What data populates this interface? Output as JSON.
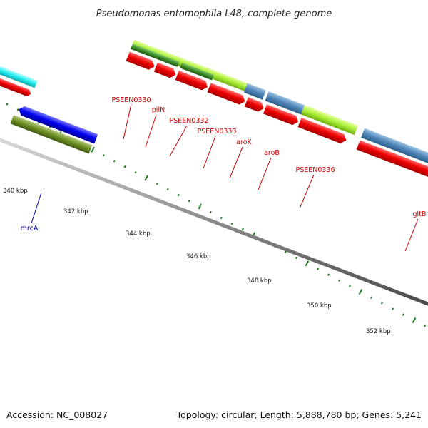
{
  "title": "Pseudomonas entomophila L48, complete genome",
  "footer": {
    "accession": "Accession: NC_008027",
    "summary": "Topology: circular; Length: 5,888,780 bp; Genes: 5,241"
  },
  "scale_unit": "kbp",
  "ticks": [
    {
      "label": "340 kbp"
    },
    {
      "label": "342 kbp"
    },
    {
      "label": "344 kbp"
    },
    {
      "label": "346 kbp"
    },
    {
      "label": "348 kbp"
    },
    {
      "label": "350 kbp"
    },
    {
      "label": "352 kbp"
    }
  ],
  "gene_labels": [
    {
      "name": "PSEEN0330",
      "color": "#cc0000"
    },
    {
      "name": "pilN",
      "color": "#cc0000"
    },
    {
      "name": "PSEEN0332",
      "color": "#cc0000"
    },
    {
      "name": "PSEEN0333",
      "color": "#cc0000"
    },
    {
      "name": "aroK",
      "color": "#cc0000"
    },
    {
      "name": "aroB",
      "color": "#cc0000"
    },
    {
      "name": "PSEEN0336",
      "color": "#cc0000"
    },
    {
      "name": "gltB",
      "color": "#cc0000"
    },
    {
      "name": "mrcA",
      "color": "#0000aa"
    }
  ],
  "colors": {
    "backbone": "#8a8a8a",
    "tick": "#1a7a1a",
    "cds": "#ee0000",
    "gene_light_green": "#a8ee33",
    "gene_dark_green": "#3c8c28",
    "gene_steel_blue": "#4f86b8",
    "gene_blue": "#0000ee",
    "gene_olive": "#6b8e23",
    "gene_cyan": "#22eeee"
  }
}
